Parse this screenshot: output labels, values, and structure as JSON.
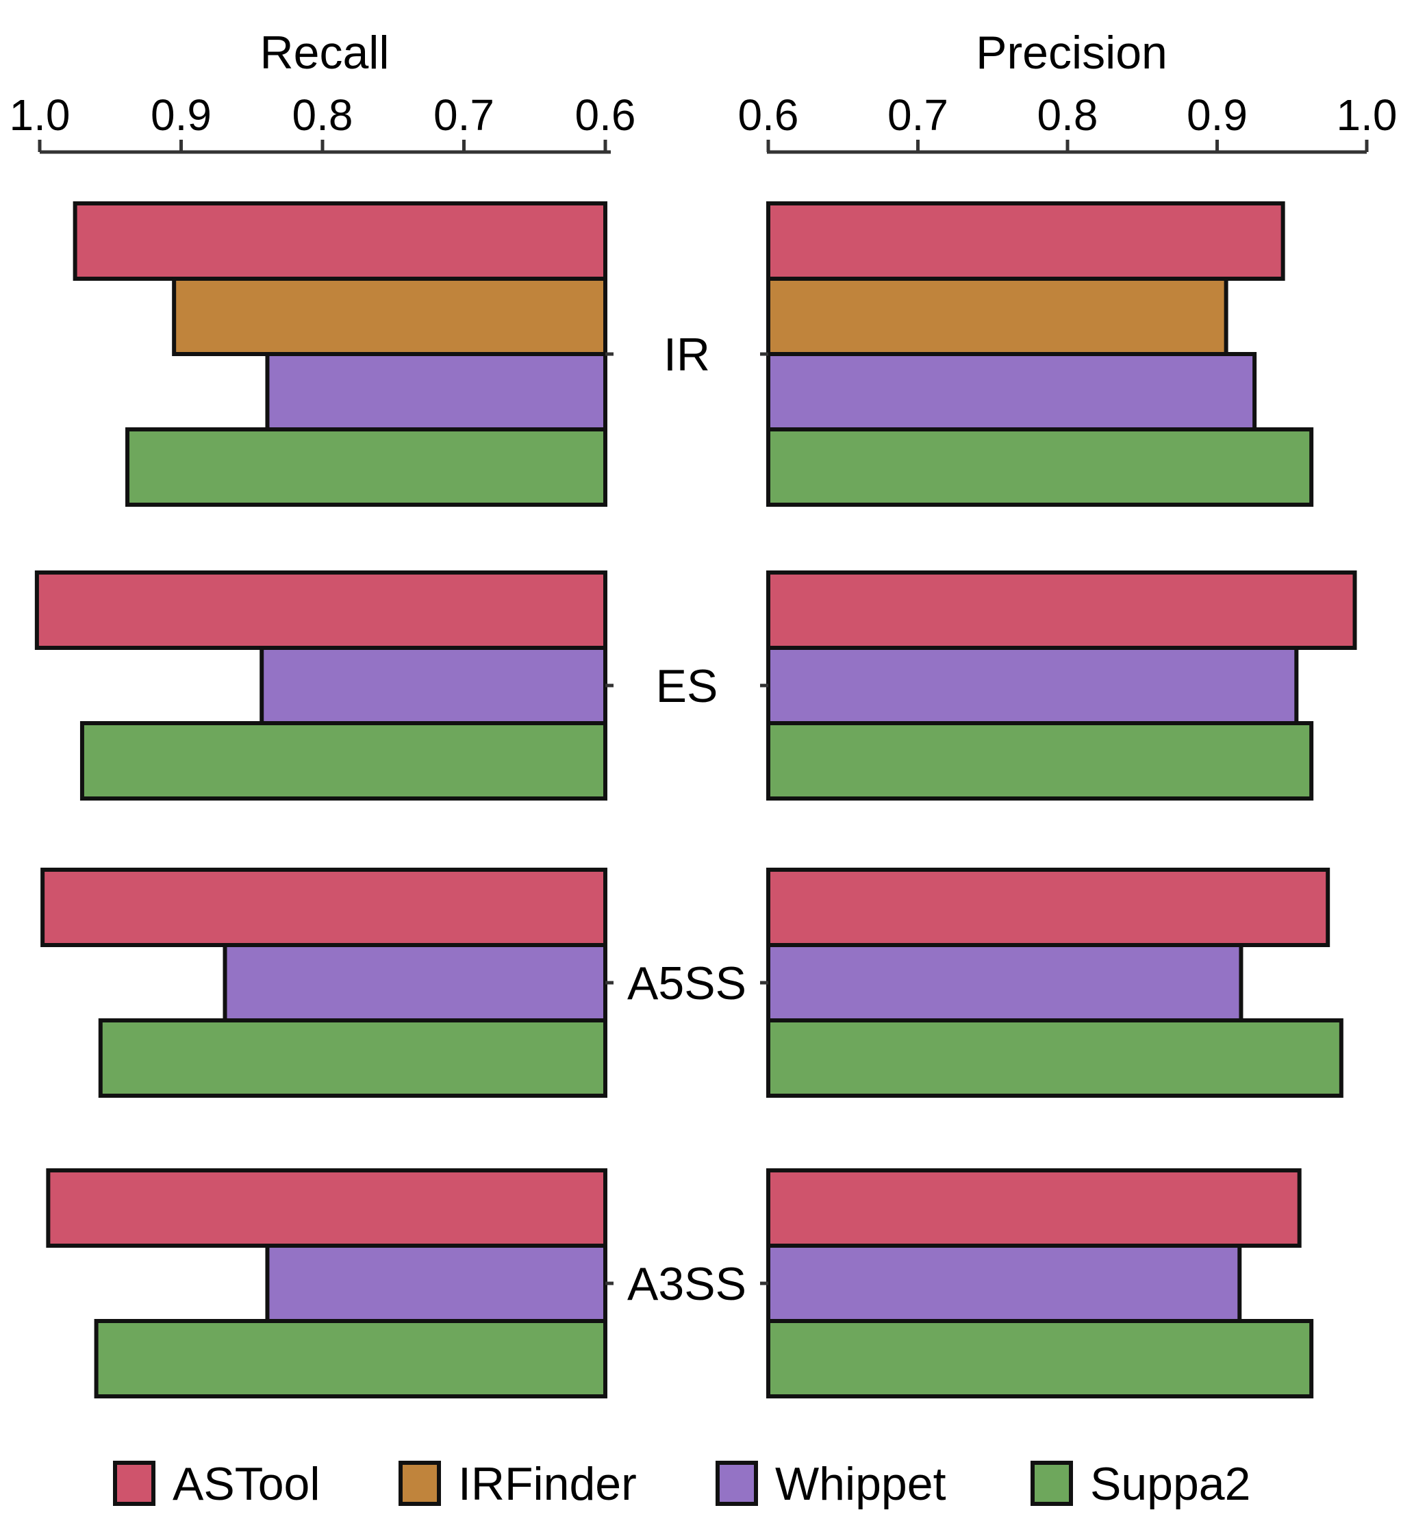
{
  "chart_data": {
    "type": "bar",
    "orientation": "horizontal",
    "layout": "back-to-back",
    "categories": [
      "IR",
      "ES",
      "A5SS",
      "A3SS"
    ],
    "panels": [
      {
        "title": "Recall",
        "xlim": [
          0.6,
          1.0
        ],
        "direction": "reversed",
        "ticks": [
          1.0,
          0.9,
          0.8,
          0.7,
          0.6
        ],
        "tick_labels": [
          "1.0",
          "0.9",
          "0.8",
          "0.7",
          "0.6"
        ],
        "series": [
          {
            "name": "ASTool",
            "values": [
              0.975,
              1.002,
              0.998,
              0.994
            ]
          },
          {
            "name": "IRFinder",
            "values": [
              0.905,
              null,
              null,
              null
            ]
          },
          {
            "name": "Whippet",
            "values": [
              0.839,
              0.843,
              0.869,
              0.839
            ]
          },
          {
            "name": "Suppa2",
            "values": [
              0.938,
              0.97,
              0.957,
              0.96
            ]
          }
        ]
      },
      {
        "title": "Precision",
        "xlim": [
          0.6,
          1.0
        ],
        "direction": "normal",
        "ticks": [
          0.6,
          0.7,
          0.8,
          0.9,
          1.0
        ],
        "tick_labels": [
          "0.6",
          "0.7",
          "0.8",
          "0.9",
          "1.0"
        ],
        "series": [
          {
            "name": "ASTool",
            "values": [
              0.944,
              0.992,
              0.974,
              0.955
            ]
          },
          {
            "name": "IRFinder",
            "values": [
              0.906,
              null,
              null,
              null
            ]
          },
          {
            "name": "Whippet",
            "values": [
              0.925,
              0.953,
              0.916,
              0.915
            ]
          },
          {
            "name": "Suppa2",
            "values": [
              0.963,
              0.963,
              0.983,
              0.963
            ]
          }
        ]
      }
    ],
    "legend": {
      "position": "bottom",
      "entries": [
        {
          "name": "ASTool",
          "color": "#cf546c"
        },
        {
          "name": "IRFinder",
          "color": "#c0843c"
        },
        {
          "name": "Whippet",
          "color": "#9473c5"
        },
        {
          "name": "Suppa2",
          "color": "#6ea75c"
        }
      ]
    },
    "colors": {
      "ASTool": "#cf546c",
      "IRFinder": "#c0843c",
      "Whippet": "#9473c5",
      "Suppa2": "#6ea75c"
    }
  }
}
